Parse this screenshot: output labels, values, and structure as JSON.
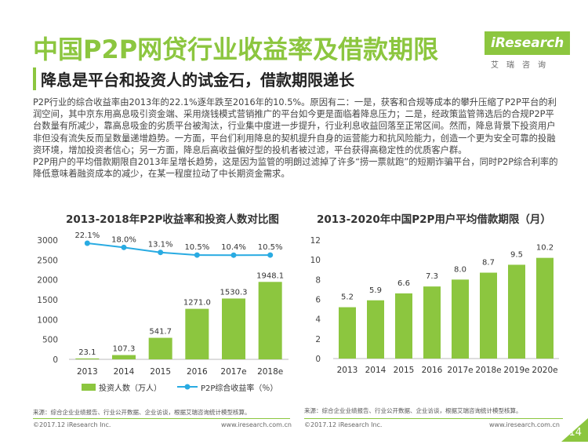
{
  "header": {
    "title": "中国P2P网贷行业收益率及借款期限",
    "subtitle": "降息是平台和投资人的试金石，借款期限递长"
  },
  "logo": {
    "brand": "iResearch",
    "sub": "艾瑞咨询"
  },
  "body": {
    "para1": "P2P行业的综合收益率由2013年的22.1%逐年跌至2016年的10.5%。原因有二：一是，获客和合规等成本的攀升压缩了P2P平台的利润空间，其中京东用高息吸引资金端、采用烧钱模式营销推广的平台如今更是面临着降息压力；二是，经政策监管筛选后的合规P2P平台数量有所减少，靠高息吸金的劣质平台被淘汰，行业集中度进一步提升，行业利息收益回落至正常区间。然而，降息背景下投资用户非但没有流失反而呈数量递增趋势。一方面，平台们利用降息的契机提升自身的运营能力和抗风险能力，创造一个更为安全可靠的投融资环境，增加投资者信心；另一方面，降息后高收益偏好型的投机者被过滤，平台获得高稳定性的优质客户群。",
    "para2": "P2P用户的平均借款期限自2013年呈增长趋势，这是因为监管的明朗过滤掉了许多“捞一票就跑”的短期诈骗平台，同时P2P综合利率的降低意味着融资成本的减少，在某一程度拉动了中长期资金需求。"
  },
  "colors": {
    "green": "#8cc63f",
    "line": "#29abe2"
  },
  "chart_data": [
    {
      "type": "bar",
      "title": "2013-2018年P2P收益率和投资人数对比图",
      "categories": [
        "2013",
        "2014",
        "2015",
        "2016",
        "2017e",
        "2018e"
      ],
      "series": [
        {
          "name": "投资人数（万人）",
          "kind": "bar",
          "values": [
            23.1,
            107.3,
            541.7,
            1271.0,
            1530.3,
            1948.1
          ],
          "labels": [
            "23.1",
            "107.3",
            "541.7",
            "1271.0",
            "1530.3",
            "1948.1"
          ]
        },
        {
          "name": "P2P综合收益率（％）",
          "kind": "line",
          "values": [
            22.1,
            18.0,
            13.1,
            10.5,
            10.4,
            10.5
          ],
          "labels": [
            "22.1%",
            "18.0%",
            "13.1%",
            "10.5%",
            "10.4%",
            "10.5%"
          ]
        }
      ],
      "yticks": [
        "0",
        "500",
        "1000",
        "1500",
        "2000",
        "2500",
        "3000"
      ],
      "ylim": [
        0,
        3000
      ],
      "legend": "bottom",
      "source": "来源：综合企业业绩报告、行业公开数据、企业访谈，根据艾瑞咨询统计模型核算。"
    },
    {
      "type": "bar",
      "title": "2013-2020年中国P2P用户平均借款期限（月）",
      "categories": [
        "2013",
        "2014",
        "2015",
        "2016",
        "2017e",
        "2018e",
        "2019e",
        "2020e"
      ],
      "values": [
        5.2,
        5.9,
        6.6,
        7.3,
        8.0,
        8.7,
        9.5,
        10.2
      ],
      "labels": [
        "5.2",
        "5.9",
        "6.6",
        "7.3",
        "8.0",
        "8.7",
        "9.5",
        "10.2"
      ],
      "yticks": [
        "0",
        "2",
        "4",
        "6",
        "8",
        "10",
        "12"
      ],
      "ylim": [
        0,
        12
      ],
      "source": "来源：综合企业业绩报告、行业公开数据、企业访谈，根据艾瑞咨询统计模型核算。"
    }
  ],
  "footer": {
    "copyright": "©2017.12 iResearch Inc.",
    "website": "www.iresearch.com.cn",
    "page": "14"
  }
}
